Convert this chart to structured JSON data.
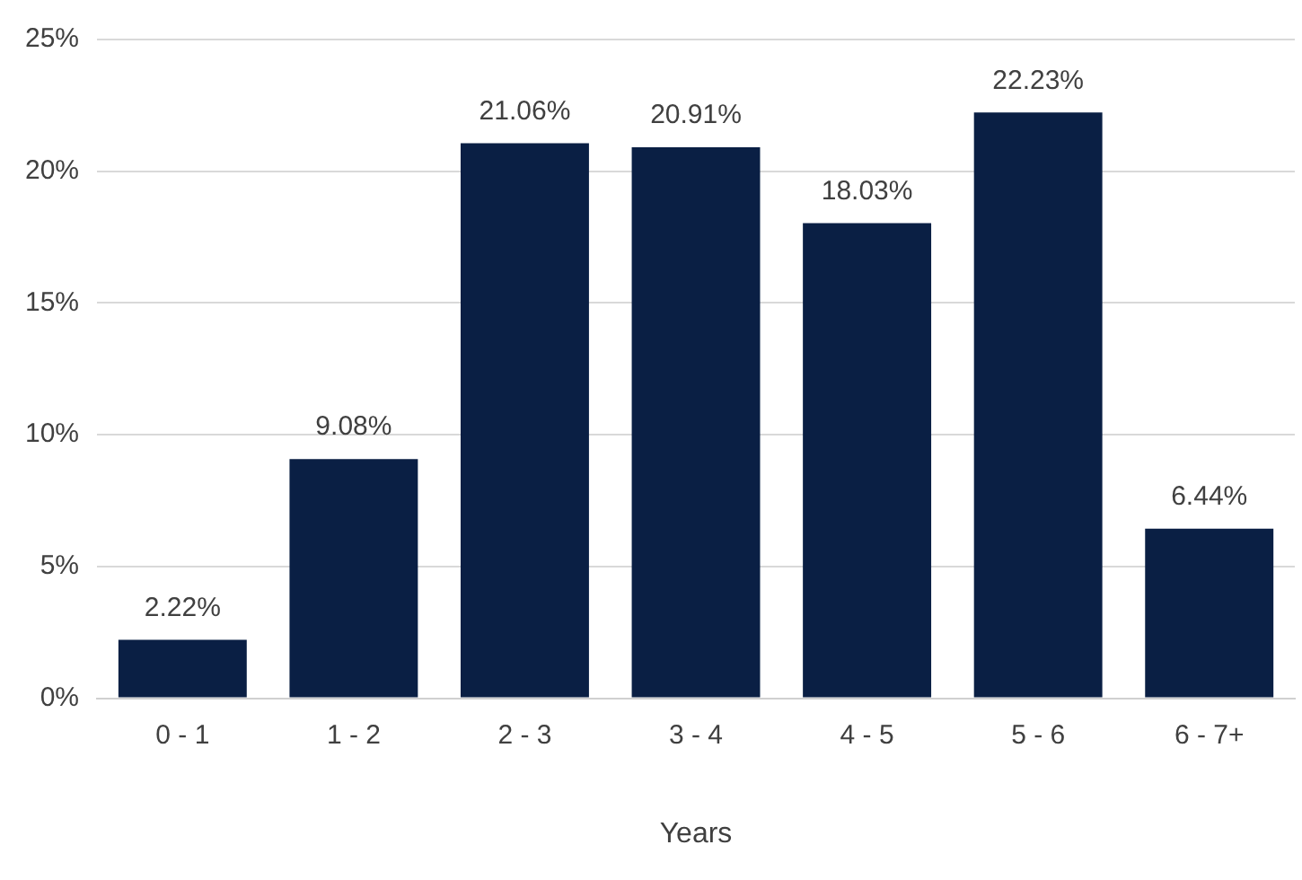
{
  "chart_data": {
    "type": "bar",
    "xlabel": "Years",
    "categories": [
      "0 - 1",
      "1 - 2",
      "2 - 3",
      "3 - 4",
      "4 - 5",
      "5 - 6",
      "6 - 7+"
    ],
    "values": [
      2.22,
      9.08,
      21.06,
      20.91,
      18.03,
      22.23,
      6.44
    ],
    "value_labels": [
      "2.22%",
      "9.08%",
      "21.06%",
      "20.91%",
      "18.03%",
      "22.23%",
      "6.44%"
    ],
    "color": "#0a1f44",
    "ylim": [
      0,
      25
    ],
    "yticks": [
      {
        "value": 0,
        "label": "0%"
      },
      {
        "value": 5,
        "label": "5%"
      },
      {
        "value": 10,
        "label": "10%"
      },
      {
        "value": 15,
        "label": "15%"
      },
      {
        "value": 20,
        "label": "20%"
      },
      {
        "value": 25,
        "label": "25%"
      }
    ],
    "grid": "y",
    "legend": false
  }
}
